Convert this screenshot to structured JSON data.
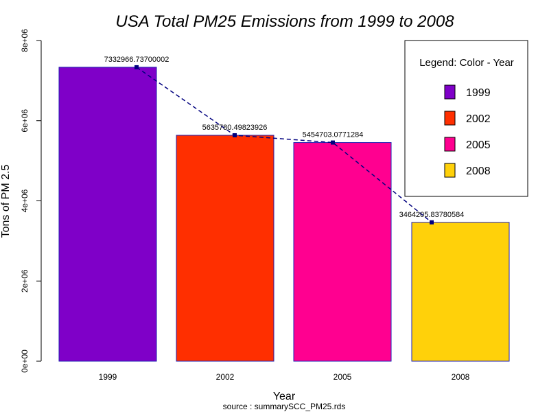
{
  "chart_data": {
    "type": "bar",
    "title": "USA Total PM25 Emissions from 1999 to 2008",
    "xlabel": "Year",
    "ylabel": "Tons of PM 2.5",
    "source": "source : summarySCC_PM25.rds",
    "categories": [
      "1999",
      "2002",
      "2005",
      "2008"
    ],
    "values": [
      7332966.73700002,
      5635780.49823926,
      5454703.0771284,
      3464205.83780584
    ],
    "data_labels": [
      "7332966.73700002",
      "5635780.49823926",
      "5454703.0771284",
      "3464205.83780584"
    ],
    "colors": [
      "#7f00c8",
      "#ff2f00",
      "#ff0090",
      "#ffd10a"
    ],
    "bar_border_color": "#1f1fb0",
    "trend_line": {
      "style": "dashed",
      "color": "#00007f",
      "marker": "square"
    },
    "ylim": [
      0,
      8000000
    ],
    "yticks": [
      0,
      2000000,
      4000000,
      6000000,
      8000000
    ],
    "ytick_labels": [
      "0e+00",
      "2e+06",
      "4e+06",
      "6e+06",
      "8e+06"
    ],
    "grid": false,
    "legend": {
      "title": "Legend: Color - Year",
      "position": "top-right",
      "entries": [
        "1999",
        "2002",
        "2005",
        "2008"
      ]
    }
  }
}
